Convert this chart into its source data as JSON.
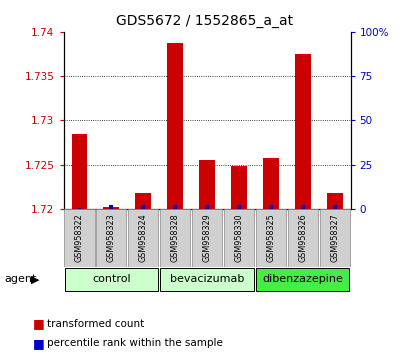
{
  "title": "GDS5672 / 1552865_a_at",
  "samples": [
    "GSM958322",
    "GSM958323",
    "GSM958324",
    "GSM958328",
    "GSM958329",
    "GSM958330",
    "GSM958325",
    "GSM958326",
    "GSM958327"
  ],
  "red_values": [
    1.7285,
    1.7202,
    1.7218,
    1.7387,
    1.7255,
    1.7248,
    1.7258,
    1.7375,
    1.7218
  ],
  "blue_values": [
    0.5,
    2.0,
    2.0,
    2.0,
    2.0,
    2.0,
    2.0,
    2.0,
    2.0
  ],
  "groups": [
    {
      "label": "control",
      "indices": [
        0,
        1,
        2
      ],
      "color": "#ccffcc"
    },
    {
      "label": "bevacizumab",
      "indices": [
        3,
        4,
        5
      ],
      "color": "#ccffcc"
    },
    {
      "label": "dibenzazepine",
      "indices": [
        6,
        7,
        8
      ],
      "color": "#44ee44"
    }
  ],
  "ymin": 1.72,
  "ymax": 1.74,
  "yticks": [
    1.72,
    1.725,
    1.73,
    1.735,
    1.74
  ],
  "ytick_labels": [
    "1.72",
    "1.725",
    "1.73",
    "1.735",
    "1.74"
  ],
  "right_yticks": [
    0,
    25,
    50,
    75,
    100
  ],
  "right_ytick_labels": [
    "0",
    "25",
    "50",
    "75",
    "100%"
  ],
  "left_color": "#cc0000",
  "right_color": "#0000cc",
  "agent_label": "agent",
  "legend_red": "transformed count",
  "legend_blue": "percentile rank within the sample",
  "group_label_fontsize": 8,
  "title_fontsize": 10
}
